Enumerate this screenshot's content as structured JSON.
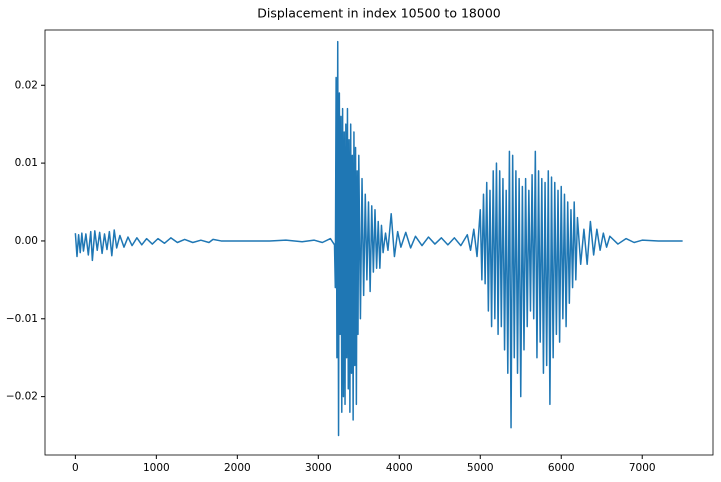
{
  "chart_data": {
    "type": "line",
    "title": "Displacement in index 10500 to 18000",
    "color": "#1f77b4",
    "xlim": [
      -375,
      7874
    ],
    "ylim": [
      -0.0275,
      0.0271
    ],
    "xticks": [
      0,
      1000,
      2000,
      3000,
      4000,
      5000,
      6000,
      7000
    ],
    "yticks": [
      {
        "value": -0.02,
        "label": "−0.02"
      },
      {
        "value": -0.01,
        "label": "−0.01"
      },
      {
        "value": 0,
        "label": "0.00"
      },
      0.01,
      0.02
    ],
    "x": [
      0,
      20,
      40,
      60,
      80,
      100,
      130,
      160,
      190,
      210,
      240,
      270,
      300,
      330,
      360,
      390,
      420,
      450,
      480,
      510,
      550,
      600,
      650,
      700,
      760,
      820,
      880,
      950,
      1020,
      1100,
      1180,
      1260,
      1350,
      1450,
      1550,
      1650,
      1700,
      1800,
      2000,
      2200,
      2400,
      2600,
      2800,
      2950,
      3050,
      3150,
      3200,
      3210,
      3220,
      3230,
      3240,
      3250,
      3260,
      3270,
      3280,
      3290,
      3300,
      3310,
      3320,
      3330,
      3340,
      3350,
      3360,
      3370,
      3380,
      3390,
      3400,
      3410,
      3420,
      3430,
      3440,
      3450,
      3460,
      3470,
      3480,
      3490,
      3500,
      3520,
      3540,
      3560,
      3580,
      3600,
      3620,
      3640,
      3660,
      3680,
      3700,
      3720,
      3740,
      3760,
      3780,
      3800,
      3830,
      3860,
      3900,
      3940,
      3980,
      4020,
      4080,
      4140,
      4200,
      4280,
      4360,
      4440,
      4520,
      4600,
      4680,
      4760,
      4840,
      4880,
      4920,
      4960,
      5000,
      5020,
      5040,
      5060,
      5080,
      5100,
      5120,
      5140,
      5160,
      5180,
      5200,
      5220,
      5240,
      5260,
      5280,
      5300,
      5320,
      5340,
      5360,
      5380,
      5400,
      5420,
      5440,
      5460,
      5480,
      5500,
      5520,
      5540,
      5560,
      5580,
      5600,
      5620,
      5640,
      5660,
      5680,
      5700,
      5720,
      5740,
      5760,
      5780,
      5800,
      5820,
      5840,
      5860,
      5880,
      5900,
      5920,
      5940,
      5960,
      5980,
      6000,
      6020,
      6040,
      6060,
      6080,
      6100,
      6120,
      6140,
      6160,
      6180,
      6200,
      6240,
      6280,
      6320,
      6360,
      6400,
      6440,
      6480,
      6520,
      6560,
      6600,
      6700,
      6800,
      6900,
      7000,
      7200,
      7499
    ],
    "values": [
      0.001,
      -0.002,
      0.0008,
      -0.0015,
      0.001,
      -0.0013,
      0.0009,
      -0.0018,
      0.0012,
      -0.0025,
      0.0013,
      -0.0012,
      0.0011,
      -0.0016,
      0.0009,
      -0.0011,
      0.0012,
      -0.0019,
      0.0014,
      -0.0009,
      0.0007,
      -0.0008,
      0.0005,
      -0.0006,
      0.0004,
      -0.0005,
      0.0003,
      -0.0004,
      0.0003,
      -0.0003,
      0.0004,
      -0.0002,
      0.0002,
      -0.0002,
      0.0001,
      -0.0002,
      0.0002,
      0,
      0,
      0,
      0,
      0.0001,
      -0.0001,
      0.0001,
      -0.0002,
      0.0003,
      -0.0005,
      -0.006,
      0.021,
      -0.015,
      0.0256,
      -0.025,
      0.019,
      -0.012,
      0.016,
      -0.022,
      0.017,
      -0.02,
      0.014,
      -0.021,
      0.015,
      -0.015,
      0.017,
      -0.019,
      0.013,
      -0.022,
      0.015,
      -0.017,
      0.011,
      -0.023,
      0.014,
      -0.016,
      0.012,
      -0.021,
      0.009,
      -0.012,
      0.011,
      -0.01,
      0.008,
      -0.007,
      0.006,
      -0.005,
      0.005,
      -0.0065,
      0.0045,
      -0.004,
      0.004,
      -0.0035,
      0.0025,
      -0.0035,
      0.002,
      -0.0015,
      0.001,
      -0.0012,
      0.0035,
      -0.002,
      0.0012,
      -0.0008,
      0.0011,
      -0.0009,
      0.0006,
      -0.0006,
      0.0005,
      -0.0004,
      0.0004,
      -0.0005,
      0.0004,
      -0.0006,
      0.0008,
      -0.0012,
      0.0015,
      -0.002,
      0.004,
      -0.005,
      0.006,
      -0.0055,
      0.0075,
      -0.009,
      0.0065,
      -0.011,
      0.009,
      -0.01,
      0.01,
      -0.012,
      0.009,
      -0.011,
      0.008,
      -0.014,
      0.0065,
      -0.017,
      0.0115,
      -0.024,
      0.011,
      -0.015,
      0.009,
      -0.017,
      0.008,
      -0.02,
      0.007,
      -0.014,
      0.008,
      -0.011,
      0.0065,
      -0.009,
      0.0085,
      -0.01,
      0.0115,
      -0.015,
      0.009,
      -0.013,
      0.008,
      -0.017,
      0.0075,
      -0.016,
      0.009,
      -0.021,
      0.0082,
      -0.015,
      0.0075,
      -0.012,
      0.0065,
      -0.013,
      0.007,
      -0.01,
      0.006,
      -0.011,
      0.005,
      -0.008,
      0.004,
      -0.006,
      0.005,
      -0.005,
      0.003,
      -0.003,
      0.0015,
      -0.003,
      0.0025,
      -0.0018,
      0.0015,
      -0.0012,
      0.001,
      -0.0008,
      0.0006,
      -0.0004,
      0.0003,
      -0.0002,
      0.0001,
      0,
      0
    ]
  }
}
